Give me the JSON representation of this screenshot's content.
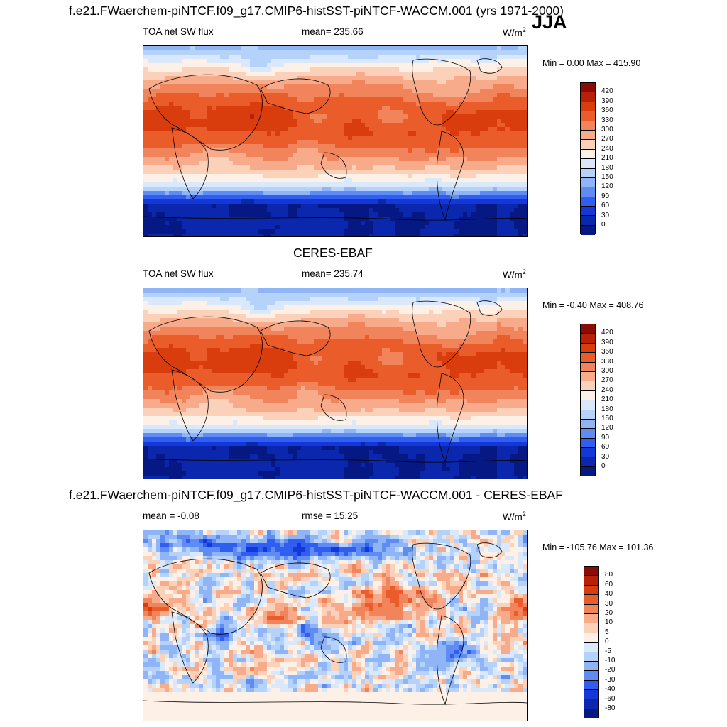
{
  "season": "JJA",
  "panels": [
    {
      "title": "f.e21.FWaerchem-piNTCF.f09_g17.CMIP6-histSST-piNTCF-WACCM.001 (yrs 1971-2000)",
      "left_label": "TOA net SW flux",
      "center_label": "mean= 235.66",
      "units_base": "W/m",
      "units_exp": "2",
      "minmax": "Min =   0.00 Max = 415.90",
      "colorbar": {
        "labels": [
          "420",
          "390",
          "360",
          "330",
          "300",
          "270",
          "240",
          "210",
          "180",
          "150",
          "120",
          "90",
          "60",
          "30",
          "0"
        ],
        "colors": [
          "#8a0c05",
          "#b82107",
          "#d93d0d",
          "#ea5d2a",
          "#f2845c",
          "#f7ab8a",
          "#fbd1b9",
          "#fdf0e6",
          "#d9e9fb",
          "#b5d2fa",
          "#8fb5f6",
          "#5f8cf3",
          "#2f5ef0",
          "#1337d8",
          "#0b27ae",
          "#051883"
        ]
      },
      "contour_levels": [
        0,
        30,
        60,
        90,
        120,
        150,
        180,
        210,
        240,
        270,
        300,
        330,
        360,
        390,
        420
      ]
    },
    {
      "title": "CERES-EBAF",
      "left_label": "TOA net SW flux",
      "center_label": "mean= 235.74",
      "units_base": "W/m",
      "units_exp": "2",
      "minmax": "Min =  -0.40 Max = 408.76",
      "colorbar": {
        "labels": [
          "420",
          "390",
          "360",
          "330",
          "300",
          "270",
          "240",
          "210",
          "180",
          "150",
          "120",
          "90",
          "60",
          "30",
          "0"
        ],
        "colors": [
          "#8a0c05",
          "#b82107",
          "#d93d0d",
          "#ea5d2a",
          "#f2845c",
          "#f7ab8a",
          "#fbd1b9",
          "#fdf0e6",
          "#d9e9fb",
          "#b5d2fa",
          "#8fb5f6",
          "#5f8cf3",
          "#2f5ef0",
          "#1337d8",
          "#0b27ae",
          "#051883"
        ]
      },
      "contour_levels": [
        0,
        30,
        60,
        90,
        120,
        150,
        180,
        210,
        240,
        270,
        300,
        330,
        360,
        390,
        420
      ]
    },
    {
      "title": "f.e21.FWaerchem-piNTCF.f09_g17.CMIP6-histSST-piNTCF-WACCM.001 - CERES-EBAF",
      "left_label": "mean =  -0.08",
      "center_label": "rmse =  15.25",
      "units_base": "W/m",
      "units_exp": "2",
      "minmax": "Min = -105.76 Max = 101.36",
      "colorbar": {
        "labels": [
          "80",
          "60",
          "40",
          "30",
          "20",
          "10",
          "5",
          "0",
          "-5",
          "-10",
          "-20",
          "-30",
          "-40",
          "-60",
          "-80"
        ],
        "colors": [
          "#8a0c05",
          "#b82107",
          "#d93d0d",
          "#ea5d2a",
          "#f2845c",
          "#f7ab8a",
          "#fbd1b9",
          "#fdf0e6",
          "#d9e9fb",
          "#b5d2fa",
          "#8fb5f6",
          "#5f8cf3",
          "#2f5ef0",
          "#1337d8",
          "#0b27ae",
          "#051883"
        ]
      },
      "contour_levels": [
        -80,
        -60,
        -40,
        -30,
        -20,
        -10,
        -5,
        0,
        5,
        10,
        20,
        30,
        40,
        60,
        80
      ]
    }
  ]
}
